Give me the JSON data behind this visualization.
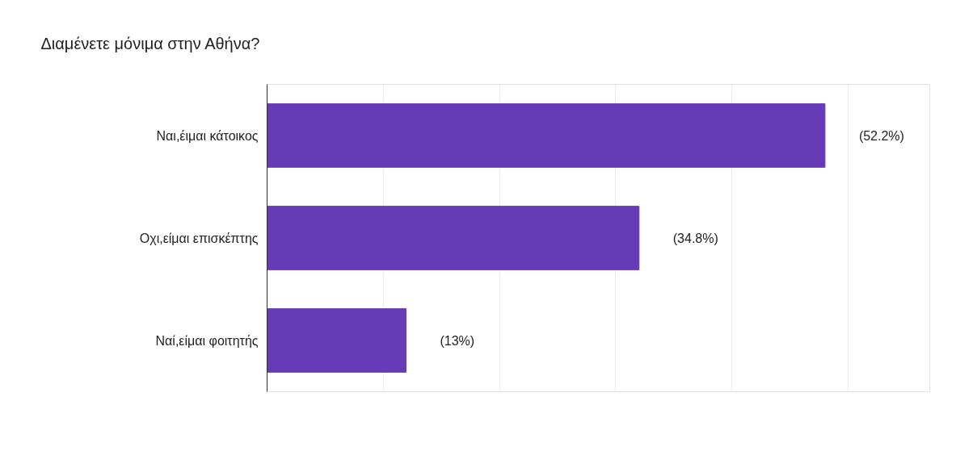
{
  "chart_data": {
    "type": "bar",
    "orientation": "horizontal",
    "title": "Διαμένετε μόνιμα στην Αθήνα?",
    "categories": [
      "Ναι,έιμαι κάτοικος",
      "Οχι,είμαι επισκέπτης",
      "Ναί,είμαι φοιτητής"
    ],
    "values": [
      52.2,
      34.8,
      13
    ],
    "value_labels": [
      "(52.2%)",
      "(34.8%)",
      "(13%)"
    ],
    "color": "#673ab7",
    "xlim": [
      0,
      62
    ],
    "xticks": [
      {
        "value": 0,
        "label": null
      },
      {
        "value": 10.87,
        "label": null
      },
      {
        "value": 21.74,
        "label": null
      },
      {
        "value": 32.61,
        "label": null
      },
      {
        "value": 43.48,
        "label": null
      },
      {
        "value": 54.35,
        "label": null
      }
    ],
    "tick_labels": "y",
    "grid": "x"
  }
}
